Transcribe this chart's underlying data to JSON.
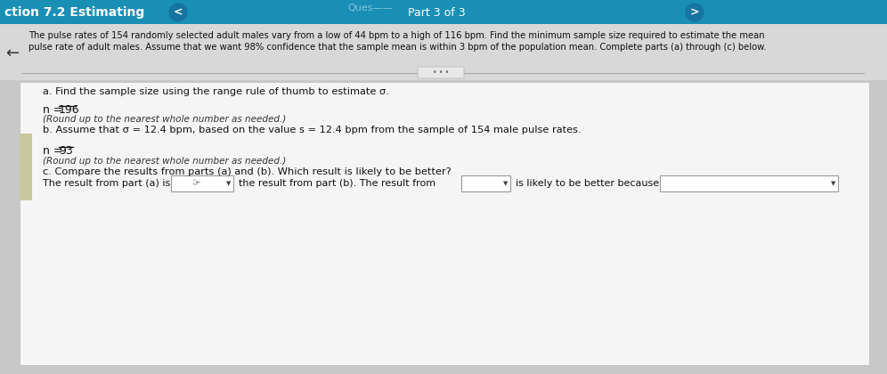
{
  "title_bar_color": "#1a8fb5",
  "title_bar_text": "ction 7.2 Estimating",
  "part_text": "Part 3 of 3",
  "bg_color": "#c8c8c8",
  "header_bg": "#e0e0e0",
  "content_bg": "#f2f2f2",
  "header_text_line1": "The pulse rates of 154 randomly selected adult males vary from a low of 44 bpm to a high of 116 bpm. Find the minimum sample size required to estimate the mean",
  "header_text_line2": "pulse rate of adult males. Assume that we want 98% confidence that the sample mean is within 3 bpm of the population mean. Complete parts (a) through (c) below.",
  "part_a_label": "a. Find the sample size using the range rule of thumb to estimate σ.",
  "part_a_n": "n = ",
  "part_a_val": "196",
  "part_a_note": "(Round up to the nearest whole number as needed.)",
  "part_b_label": "b. Assume that σ = 12.4 bpm, based on the value s = 12.4 bpm from the sample of 154 male pulse rates.",
  "part_b_n": "n = ",
  "part_b_val": "93",
  "part_b_note": "(Round up to the nearest whole number as needed.)",
  "part_c_label": "c. Compare the results from parts (a) and (b). Which result is likely to be better?",
  "part_c_text1": "The result from part (a) is",
  "part_c_text2": "the result from part (b). The result from",
  "part_c_text3": "is likely to be better because",
  "text_color": "#111111",
  "underline_color": "#111111",
  "sidebar_color": "#c8c8a0",
  "white": "#ffffff",
  "dropdown_border": "#999999"
}
